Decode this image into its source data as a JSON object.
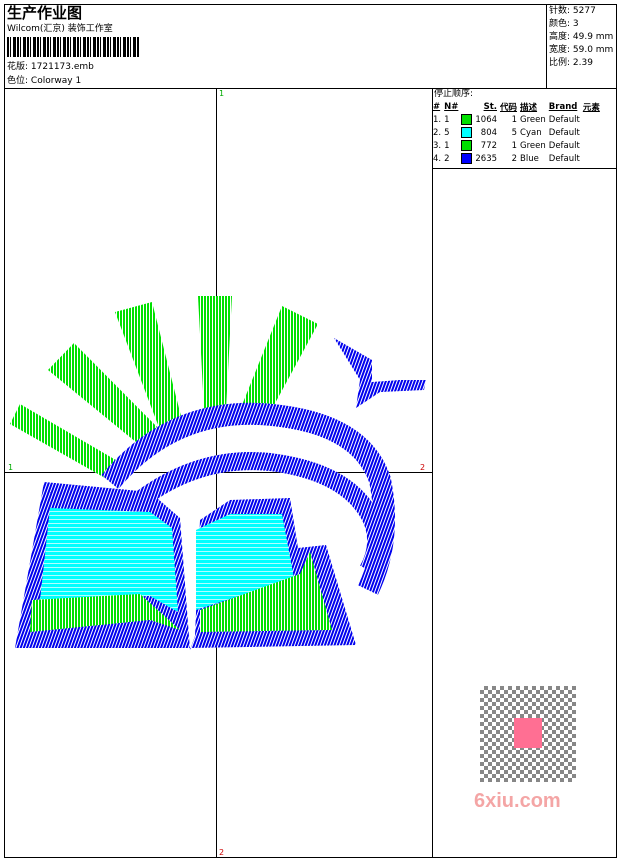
{
  "header": {
    "title": "生产作业图",
    "company": "Wilcom(汇京) 装饰工作室",
    "design_label": "花版:",
    "design_file": "1721173.emb",
    "colorway_label": "色位:",
    "colorway": "Colorway 1"
  },
  "stats": {
    "stitches": "针数: 5277",
    "colors": "颜色: 3",
    "height": "高度: 49.9 mm",
    "width": "宽度: 59.0 mm",
    "scale": "比例: 2.39"
  },
  "stop_sequence": {
    "title": "停止顺序:",
    "headers": [
      "#",
      "N#",
      "St.",
      "代码",
      "描述",
      "Brand",
      "元素"
    ],
    "rows": [
      {
        "seq": "1.",
        "n": "1",
        "color": "#00e000",
        "st": "1064",
        "code": "1",
        "desc": "Green",
        "brand": "Default"
      },
      {
        "seq": "2.",
        "n": "5",
        "color": "#00ffff",
        "st": "804",
        "code": "5",
        "desc": "Cyan",
        "brand": "Default"
      },
      {
        "seq": "3.",
        "n": "1",
        "color": "#00e000",
        "st": "772",
        "code": "1",
        "desc": "Green",
        "brand": "Default"
      },
      {
        "seq": "4.",
        "n": "2",
        "color": "#0000ff",
        "st": "2635",
        "code": "2",
        "desc": "Blue",
        "brand": "Default"
      }
    ]
  },
  "axes": {
    "top": "1",
    "bottom": "2",
    "left": "1",
    "right": "2"
  },
  "watermark": {
    "text": "6xiu.com"
  }
}
